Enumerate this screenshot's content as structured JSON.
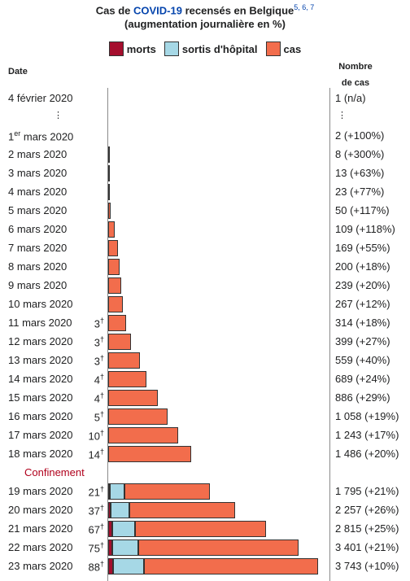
{
  "header": {
    "title_prefix": "Cas de ",
    "title_link": "COVID-19",
    "title_suffix": " recensés en Belgique",
    "title_refs": "5, 6, 7",
    "subtitle": "(augmentation journalière en %)"
  },
  "legend": [
    {
      "label": "morts",
      "color": "#a50e2d"
    },
    {
      "label": "sortis d'hôpital",
      "color": "#a6d8e6"
    },
    {
      "label": "cas",
      "color": "#f26d4c"
    }
  ],
  "columns": {
    "date": "Date",
    "count_line1": "Nombre",
    "count_line2": "de cas"
  },
  "ellipsis_symbol": "⋮",
  "confinement_label": "Confinement",
  "chart_data": {
    "type": "bar",
    "orientation": "horizontal",
    "stacked": true,
    "title": "Cas de COVID-19 recensés en Belgique (augmentation journalière en %)",
    "legend_position": "top",
    "series_colors": {
      "morts": "#a50e2d",
      "sortis d'hôpital": "#a6d8e6",
      "cas": "#f26d4c"
    },
    "xlim": [
      0,
      3743
    ],
    "rows": [
      {
        "date": "4 février 2020",
        "deaths": null,
        "recovered": 0,
        "cases": 1,
        "count_label": "1 (n/a)"
      },
      {
        "date": "1er mars 2020",
        "date_main": "1",
        "date_sup": "er",
        "date_rest": " mars 2020",
        "deaths": null,
        "recovered": 0,
        "cases": 2,
        "count_label": "2 (+100%)"
      },
      {
        "date": "2 mars 2020",
        "deaths": null,
        "recovered": 0,
        "cases": 8,
        "count_label": "8 (+300%)"
      },
      {
        "date": "3 mars 2020",
        "deaths": null,
        "recovered": 0,
        "cases": 13,
        "count_label": "13 (+63%)"
      },
      {
        "date": "4 mars 2020",
        "deaths": null,
        "recovered": 0,
        "cases": 23,
        "count_label": "23 (+77%)"
      },
      {
        "date": "5 mars 2020",
        "deaths": null,
        "recovered": 0,
        "cases": 50,
        "count_label": "50 (+117%)"
      },
      {
        "date": "6 mars 2020",
        "deaths": null,
        "recovered": 0,
        "cases": 109,
        "count_label": "109 (+118%)"
      },
      {
        "date": "7 mars 2020",
        "deaths": null,
        "recovered": 0,
        "cases": 169,
        "count_label": "169 (+55%)"
      },
      {
        "date": "8 mars 2020",
        "deaths": null,
        "recovered": 0,
        "cases": 200,
        "count_label": "200 (+18%)"
      },
      {
        "date": "9 mars 2020",
        "deaths": null,
        "recovered": 0,
        "cases": 239,
        "count_label": "239 (+20%)"
      },
      {
        "date": "10 mars 2020",
        "deaths": null,
        "recovered": 0,
        "cases": 267,
        "count_label": "267 (+12%)"
      },
      {
        "date": "11 mars 2020",
        "deaths": 3,
        "recovered": 0,
        "cases": 314,
        "count_label": "314 (+18%)"
      },
      {
        "date": "12 mars 2020",
        "deaths": 3,
        "recovered": 0,
        "cases": 399,
        "count_label": "399 (+27%)"
      },
      {
        "date": "13 mars 2020",
        "deaths": 3,
        "recovered": 0,
        "cases": 559,
        "count_label": "559 (+40%)"
      },
      {
        "date": "14 mars 2020",
        "deaths": 4,
        "recovered": 0,
        "cases": 689,
        "count_label": "689 (+24%)"
      },
      {
        "date": "15 mars 2020",
        "deaths": 4,
        "recovered": 0,
        "cases": 886,
        "count_label": "886 (+29%)"
      },
      {
        "date": "16 mars 2020",
        "deaths": 5,
        "recovered": 0,
        "cases": 1058,
        "count_label": "1 058 (+19%)"
      },
      {
        "date": "17 mars 2020",
        "deaths": 10,
        "recovered": 0,
        "cases": 1243,
        "count_label": "1 243 (+17%)"
      },
      {
        "date": "18 mars 2020",
        "deaths": 14,
        "recovered": 0,
        "cases": 1486,
        "count_label": "1 486 (+20%)"
      },
      {
        "date": "19 mars 2020",
        "deaths": 21,
        "recovered": 263,
        "cases": 1795,
        "count_label": "1 795 (+21%)"
      },
      {
        "date": "20 mars 2020",
        "deaths": 37,
        "recovered": 340,
        "cases": 2257,
        "count_label": "2 257 (+26%)"
      },
      {
        "date": "21 mars 2020",
        "deaths": 67,
        "recovered": 410,
        "cases": 2815,
        "count_label": "2 815 (+25%)"
      },
      {
        "date": "22 mars 2020",
        "deaths": 75,
        "recovered": 461,
        "cases": 3401,
        "count_label": "3 401 (+21%)"
      },
      {
        "date": "23 mars 2020",
        "deaths": 88,
        "recovered": 547,
        "cases": 3743,
        "count_label": "3 743 (+10%)"
      }
    ]
  }
}
